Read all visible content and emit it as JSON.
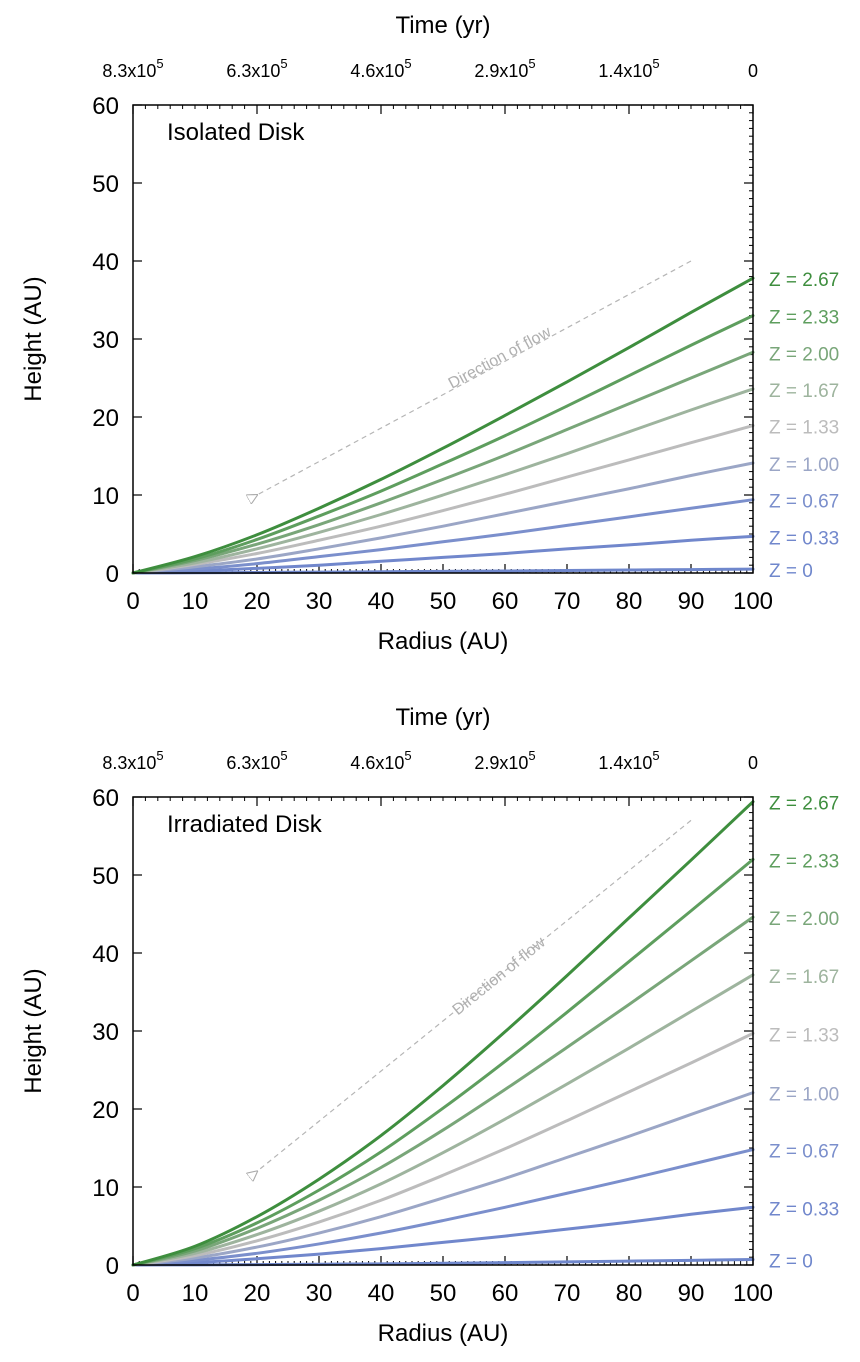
{
  "chart_data": [
    {
      "type": "line",
      "title": "Isolated Disk",
      "xlabel": "Radius (AU)",
      "ylabel": "Height (AU)",
      "top_xlabel": "Time (yr)",
      "xlim": [
        0,
        100
      ],
      "ylim": [
        0,
        60
      ],
      "x_ticks": [
        "0",
        "10",
        "20",
        "30",
        "40",
        "50",
        "60",
        "70",
        "80",
        "90",
        "100"
      ],
      "y_ticks": [
        "0",
        "10",
        "20",
        "30",
        "40",
        "50",
        "60"
      ],
      "top_ticks": [
        {
          "mantissa": "8.3x10",
          "exp": "5",
          "x": 0
        },
        {
          "mantissa": "6.3x10",
          "exp": "5",
          "x": 20
        },
        {
          "mantissa": "4.6x10",
          "exp": "5",
          "x": 40
        },
        {
          "mantissa": "2.9x10",
          "exp": "5",
          "x": 60
        },
        {
          "mantissa": "1.4x10",
          "exp": "5",
          "x": 80
        },
        {
          "mantissa": "0",
          "exp": "",
          "x": 100
        }
      ],
      "annotation": {
        "text": "Direction of flow",
        "from": [
          90,
          40
        ],
        "to": [
          20,
          10
        ]
      },
      "series": [
        {
          "name": "Z = 0",
          "color": "#6f87cc",
          "x": [
            0,
            10,
            20,
            30,
            40,
            50,
            60,
            70,
            80,
            90,
            100
          ],
          "y": [
            0,
            0.03,
            0.07,
            0.11,
            0.16,
            0.21,
            0.26,
            0.32,
            0.38,
            0.44,
            0.5
          ]
        },
        {
          "name": "Z = 0.33",
          "color": "#7187cc",
          "x": [
            0,
            10,
            20,
            30,
            40,
            50,
            60,
            70,
            80,
            90,
            100
          ],
          "y": [
            0,
            0.25,
            0.6,
            1.0,
            1.5,
            2.0,
            2.5,
            3.1,
            3.6,
            4.2,
            4.7
          ]
        },
        {
          "name": "Z = 0.67",
          "color": "#7b8fcc",
          "x": [
            0,
            10,
            20,
            30,
            40,
            50,
            60,
            70,
            80,
            90,
            100
          ],
          "y": [
            0,
            0.5,
            1.2,
            2.1,
            3.0,
            4.0,
            5.0,
            6.1,
            7.2,
            8.3,
            9.4
          ]
        },
        {
          "name": "Z = 1.00",
          "color": "#9ba6c6",
          "x": [
            0,
            10,
            20,
            30,
            40,
            50,
            60,
            70,
            80,
            90,
            100
          ],
          "y": [
            0,
            0.8,
            1.8,
            3.1,
            4.5,
            6.0,
            7.6,
            9.2,
            10.8,
            12.5,
            14.1
          ]
        },
        {
          "name": "Z = 1.33",
          "color": "#bcbcbc",
          "x": [
            0,
            10,
            20,
            30,
            40,
            50,
            60,
            70,
            80,
            90,
            100
          ],
          "y": [
            0,
            1.1,
            2.5,
            4.2,
            6.0,
            8.0,
            10.1,
            12.3,
            14.5,
            16.7,
            18.9
          ]
        },
        {
          "name": "Z = 1.67",
          "color": "#9eb49e",
          "x": [
            0,
            10,
            20,
            30,
            40,
            50,
            60,
            70,
            80,
            90,
            100
          ],
          "y": [
            0,
            1.3,
            3.1,
            5.2,
            7.5,
            10.0,
            12.6,
            15.3,
            18.1,
            20.9,
            23.6
          ]
        },
        {
          "name": "Z = 2.00",
          "color": "#79a679",
          "x": [
            0,
            10,
            20,
            30,
            40,
            50,
            60,
            70,
            80,
            90,
            100
          ],
          "y": [
            0,
            1.6,
            3.7,
            6.2,
            9.0,
            12.0,
            15.1,
            18.4,
            21.7,
            25.0,
            28.3
          ]
        },
        {
          "name": "Z = 2.33",
          "color": "#5e9e5e",
          "x": [
            0,
            10,
            20,
            30,
            40,
            50,
            60,
            70,
            80,
            90,
            100
          ],
          "y": [
            0,
            1.8,
            4.3,
            7.3,
            10.5,
            14.0,
            17.6,
            21.4,
            25.3,
            29.2,
            33.0
          ]
        },
        {
          "name": "Z = 2.67",
          "color": "#3e8e3e",
          "x": [
            0,
            10,
            20,
            30,
            40,
            50,
            60,
            70,
            80,
            90,
            100
          ],
          "y": [
            0,
            2.1,
            4.9,
            8.3,
            12.0,
            16.0,
            20.2,
            24.5,
            28.9,
            33.4,
            37.8
          ]
        }
      ]
    },
    {
      "type": "line",
      "title": "Irradiated Disk",
      "xlabel": "Radius (AU)",
      "ylabel": "Height (AU)",
      "top_xlabel": "Time (yr)",
      "xlim": [
        0,
        100
      ],
      "ylim": [
        0,
        60
      ],
      "x_ticks": [
        "0",
        "10",
        "20",
        "30",
        "40",
        "50",
        "60",
        "70",
        "80",
        "90",
        "100"
      ],
      "y_ticks": [
        "0",
        "10",
        "20",
        "30",
        "40",
        "50",
        "60"
      ],
      "top_ticks": [
        {
          "mantissa": "8.3x10",
          "exp": "5",
          "x": 0
        },
        {
          "mantissa": "6.3x10",
          "exp": "5",
          "x": 20
        },
        {
          "mantissa": "4.6x10",
          "exp": "5",
          "x": 40
        },
        {
          "mantissa": "2.9x10",
          "exp": "5",
          "x": 60
        },
        {
          "mantissa": "1.4x10",
          "exp": "5",
          "x": 80
        },
        {
          "mantissa": "0",
          "exp": "",
          "x": 100
        }
      ],
      "annotation": {
        "text": "Direction of flow",
        "from": [
          90,
          57
        ],
        "to": [
          20,
          12
        ]
      },
      "series": [
        {
          "name": "Z = 0",
          "color": "#6f87cc",
          "x": [
            0,
            10,
            20,
            30,
            40,
            50,
            60,
            70,
            80,
            90,
            100
          ],
          "y": [
            0,
            0.02,
            0.05,
            0.1,
            0.15,
            0.22,
            0.3,
            0.4,
            0.5,
            0.6,
            0.7
          ]
        },
        {
          "name": "Z = 0.33",
          "color": "#7187cc",
          "x": [
            0,
            10,
            20,
            30,
            40,
            50,
            60,
            70,
            80,
            90,
            100
          ],
          "y": [
            0,
            0.3,
            0.8,
            1.4,
            2.1,
            2.9,
            3.7,
            4.6,
            5.5,
            6.5,
            7.4
          ]
        },
        {
          "name": "Z = 0.67",
          "color": "#7b8fcc",
          "x": [
            0,
            10,
            20,
            30,
            40,
            50,
            60,
            70,
            80,
            90,
            100
          ],
          "y": [
            0,
            0.6,
            1.5,
            2.7,
            4.1,
            5.7,
            7.4,
            9.2,
            11.0,
            12.9,
            14.8
          ]
        },
        {
          "name": "Z = 1.00",
          "color": "#9ba6c6",
          "x": [
            0,
            10,
            20,
            30,
            40,
            50,
            60,
            70,
            80,
            90,
            100
          ],
          "y": [
            0,
            0.9,
            2.3,
            4.1,
            6.2,
            8.6,
            11.1,
            13.8,
            16.5,
            19.3,
            22.1
          ]
        },
        {
          "name": "Z = 1.33",
          "color": "#bcbcbc",
          "x": [
            0,
            10,
            20,
            30,
            40,
            50,
            60,
            70,
            80,
            90,
            100
          ],
          "y": [
            0,
            1.2,
            3.1,
            5.5,
            8.3,
            11.5,
            14.9,
            18.5,
            22.2,
            25.9,
            29.7
          ]
        },
        {
          "name": "Z = 1.67",
          "color": "#9eb49e",
          "x": [
            0,
            10,
            20,
            30,
            40,
            50,
            60,
            70,
            80,
            90,
            100
          ],
          "y": [
            0,
            1.5,
            3.9,
            6.9,
            10.4,
            14.4,
            18.7,
            23.2,
            27.8,
            32.5,
            37.2
          ]
        },
        {
          "name": "Z = 2.00",
          "color": "#79a679",
          "x": [
            0,
            10,
            20,
            30,
            40,
            50,
            60,
            70,
            80,
            90,
            100
          ],
          "y": [
            0,
            1.8,
            4.7,
            8.3,
            12.5,
            17.3,
            22.5,
            27.9,
            33.4,
            39.0,
            44.6
          ]
        },
        {
          "name": "Z = 2.33",
          "color": "#5e9e5e",
          "x": [
            0,
            10,
            20,
            30,
            40,
            50,
            60,
            70,
            80,
            90,
            100
          ],
          "y": [
            0,
            2.1,
            5.4,
            9.6,
            14.5,
            20.1,
            26.1,
            32.4,
            38.9,
            45.4,
            52.0
          ]
        },
        {
          "name": "Z = 2.67",
          "color": "#3e8e3e",
          "x": [
            0,
            10,
            20,
            30,
            40,
            50,
            60,
            70,
            80,
            90,
            100
          ],
          "y": [
            0,
            2.4,
            6.2,
            11.0,
            16.6,
            23.0,
            29.9,
            37.1,
            44.5,
            51.9,
            59.4
          ]
        }
      ]
    }
  ]
}
